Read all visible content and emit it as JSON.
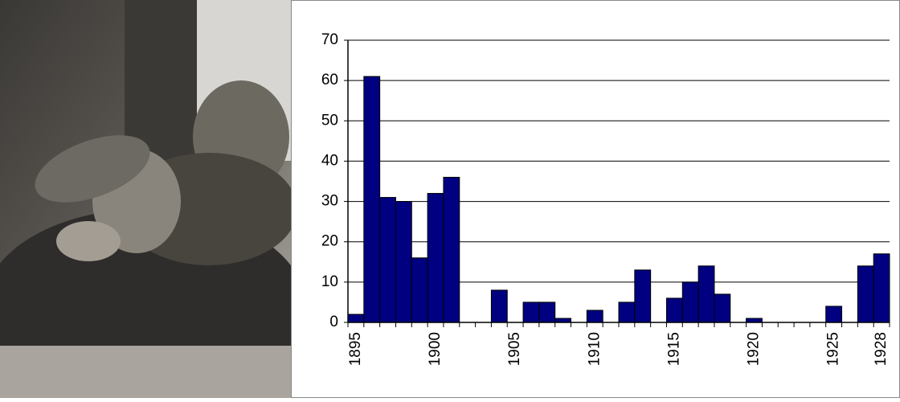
{
  "chart_data": {
    "type": "bar",
    "categories": [
      "1895",
      null,
      null,
      null,
      null,
      "1900",
      null,
      null,
      null,
      null,
      "1905",
      null,
      null,
      null,
      null,
      "1910",
      null,
      null,
      null,
      null,
      "1915",
      null,
      null,
      null,
      null,
      "1920",
      null,
      null,
      null,
      null,
      "1925",
      null,
      null,
      "1928"
    ],
    "values": [
      2,
      61,
      31,
      30,
      16,
      32,
      36,
      0,
      0,
      8,
      0,
      5,
      5,
      1,
      0,
      3,
      0,
      5,
      13,
      0,
      6,
      10,
      14,
      7,
      0,
      1,
      0,
      0,
      0,
      0,
      4,
      0,
      14,
      17
    ],
    "color": "#000080",
    "ylim": [
      0,
      70
    ],
    "yticks": [
      0,
      10,
      20,
      30,
      40,
      50,
      60,
      70
    ],
    "grid": true
  }
}
